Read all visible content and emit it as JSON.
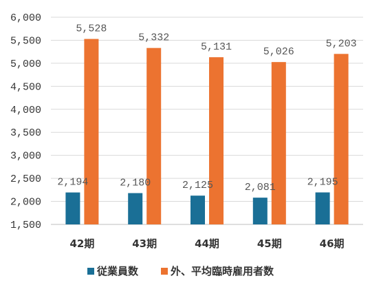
{
  "chart_data": {
    "type": "bar",
    "categories": [
      "42期",
      "43期",
      "44期",
      "45期",
      "46期"
    ],
    "series": [
      {
        "name": "従業員数",
        "color": "#1a6f96",
        "values": [
          2194,
          2180,
          2125,
          2081,
          2195
        ]
      },
      {
        "name": "外、平均臨時雇用者数",
        "color": "#ec7330",
        "values": [
          5528,
          5332,
          5131,
          5026,
          5203
        ]
      }
    ],
    "y_ticks": [
      "1,500",
      "2,000",
      "2,500",
      "3,000",
      "3,500",
      "4,000",
      "4,500",
      "5,000",
      "5,500",
      "6,000"
    ],
    "data_labels": [
      [
        "2,194",
        "2,180",
        "2,125",
        "2,081",
        "2,195"
      ],
      [
        "5,528",
        "5,332",
        "5,131",
        "5,026",
        "5,203"
      ]
    ],
    "ylim": [
      1500,
      6000
    ],
    "grid": true,
    "legend_position": "bottom"
  }
}
